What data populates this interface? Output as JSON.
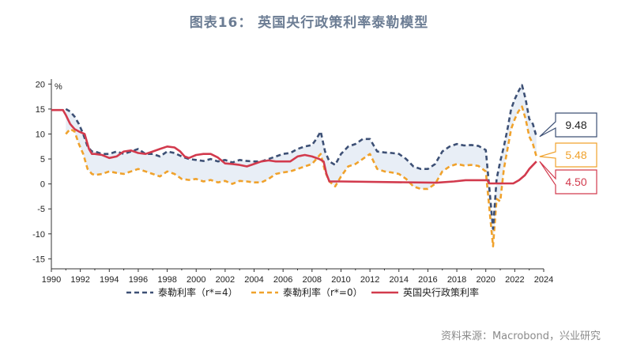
{
  "title": "图表16： 英国央行政策利率泰勒模型",
  "source": "资料来源：Macrobond，兴业研究",
  "colors": {
    "taylor_r4": "#3d5075",
    "taylor_r0": "#f0a22c",
    "policy": "#d23a4d",
    "band": "#e8eef6",
    "title": "#6c7d94"
  },
  "chart_data": {
    "type": "line",
    "title": "",
    "ylabel": "%",
    "xlim": [
      1990,
      2024
    ],
    "ylim": [
      -17,
      21
    ],
    "xticks": [
      "1990",
      "1992",
      "1994",
      "1996",
      "1998",
      "2000",
      "2002",
      "2004",
      "2006",
      "2008",
      "2010",
      "2012",
      "2014",
      "2016",
      "2018",
      "2020",
      "2022",
      "2024"
    ],
    "yticks": [
      "20",
      "15",
      "10",
      "5",
      "0",
      "-5",
      "-10",
      "-15"
    ],
    "legend_position": "bottom",
    "series": [
      {
        "name": "泰勒利率（r*=4）",
        "style": "dashed",
        "color_key": "taylor_r4",
        "x": [
          1991.0,
          1991.3,
          1991.6,
          1991.9,
          1992.2,
          1992.5,
          1992.8,
          1993.0,
          1993.5,
          1994.0,
          1994.5,
          1995.0,
          1995.5,
          1996.0,
          1996.5,
          1997.0,
          1997.5,
          1998.0,
          1998.5,
          1999.0,
          1999.5,
          2000.0,
          2000.5,
          2001.0,
          2001.5,
          2002.0,
          2002.5,
          2003.0,
          2003.5,
          2004.0,
          2004.5,
          2005.0,
          2005.5,
          2006.0,
          2006.5,
          2007.0,
          2007.5,
          2008.0,
          2008.3,
          2008.6,
          2008.9,
          2009.2,
          2009.6,
          2010.0,
          2010.5,
          2011.0,
          2011.5,
          2012.0,
          2012.5,
          2013.0,
          2013.5,
          2014.0,
          2014.5,
          2015.0,
          2015.5,
          2016.0,
          2016.5,
          2017.0,
          2017.5,
          2018.0,
          2018.5,
          2019.0,
          2019.5,
          2020.0,
          2020.25,
          2020.5,
          2020.75,
          2021.0,
          2021.25,
          2021.5,
          2021.75,
          2022.0,
          2022.25,
          2022.5,
          2022.75,
          2023.0,
          2023.25,
          2023.5
        ],
        "values": [
          15,
          14.5,
          13.5,
          12,
          10,
          7.5,
          6.5,
          6.5,
          6,
          6,
          6.5,
          6,
          6.5,
          7,
          6,
          6,
          5.5,
          6.5,
          6.2,
          5.5,
          5,
          4.8,
          4.6,
          5,
          4.5,
          4.8,
          4.3,
          4.8,
          4.6,
          4.5,
          4.5,
          5,
          5.5,
          6,
          6.2,
          7,
          7.5,
          7.8,
          9,
          10.5,
          6.5,
          4.5,
          3.8,
          6,
          7.5,
          8,
          9,
          9,
          6.5,
          6.3,
          6.2,
          6,
          5,
          3.5,
          3,
          3,
          4,
          6.5,
          7.5,
          8,
          7.7,
          7.8,
          7.6,
          6.8,
          -1,
          -9,
          1,
          4.5,
          7.5,
          11,
          15,
          17,
          18.5,
          19.8,
          17,
          13,
          12,
          9.48
        ]
      },
      {
        "name": "泰勒利率（r*=0）",
        "style": "dashed",
        "color_key": "taylor_r0",
        "x": [
          1991.0,
          1991.3,
          1991.6,
          1991.9,
          1992.2,
          1992.5,
          1992.8,
          1993.0,
          1993.5,
          1994.0,
          1994.5,
          1995.0,
          1995.5,
          1996.0,
          1996.5,
          1997.0,
          1997.5,
          1998.0,
          1998.5,
          1999.0,
          1999.5,
          2000.0,
          2000.5,
          2001.0,
          2001.5,
          2002.0,
          2002.5,
          2003.0,
          2003.5,
          2004.0,
          2004.5,
          2005.0,
          2005.5,
          2006.0,
          2006.5,
          2007.0,
          2007.5,
          2008.0,
          2008.3,
          2008.6,
          2008.9,
          2009.2,
          2009.6,
          2010.0,
          2010.5,
          2011.0,
          2011.5,
          2012.0,
          2012.5,
          2013.0,
          2013.5,
          2014.0,
          2014.5,
          2015.0,
          2015.5,
          2016.0,
          2016.5,
          2017.0,
          2017.5,
          2018.0,
          2018.5,
          2019.0,
          2019.5,
          2020.0,
          2020.25,
          2020.5,
          2020.75,
          2021.0,
          2021.25,
          2021.5,
          2021.75,
          2022.0,
          2022.25,
          2022.5,
          2022.75,
          2023.0,
          2023.25,
          2023.5
        ],
        "values": [
          10,
          11,
          10.5,
          8,
          6,
          3,
          2,
          1.8,
          2,
          2.5,
          2.2,
          2,
          2.5,
          3,
          2.5,
          2,
          1.5,
          2.5,
          2,
          1,
          0.8,
          1,
          0.5,
          0.8,
          0.3,
          0.6,
          0,
          0.6,
          0.5,
          0.3,
          0.3,
          1,
          2,
          2.3,
          2.5,
          3,
          3.5,
          4,
          5,
          6,
          2.5,
          0.5,
          -0.5,
          1.5,
          3.5,
          4,
          5,
          6,
          3,
          2.5,
          2.3,
          2,
          1,
          -0.5,
          -1,
          -1,
          0,
          2.5,
          3.5,
          4,
          3.7,
          3.8,
          3.6,
          2.5,
          -5,
          -12.5,
          -3,
          -3.5,
          3,
          7,
          11,
          13,
          14.5,
          15.5,
          13,
          9.5,
          8,
          5.48
        ]
      },
      {
        "name": "英国央行政策利率",
        "style": "solid",
        "color_key": "policy",
        "x": [
          1990.0,
          1990.8,
          1991.0,
          1991.3,
          1991.6,
          1991.9,
          1992.3,
          1992.6,
          1992.8,
          1993.0,
          1993.5,
          1994.0,
          1994.5,
          1995.0,
          1995.5,
          1996.0,
          1996.5,
          1997.0,
          1997.5,
          1998.0,
          1998.5,
          1998.9,
          1999.2,
          1999.5,
          2000.0,
          2000.5,
          2001.0,
          2001.5,
          2002.0,
          2002.5,
          2003.0,
          2003.5,
          2004.0,
          2004.5,
          2005.0,
          2005.5,
          2006.0,
          2006.5,
          2007.0,
          2007.5,
          2008.0,
          2008.5,
          2008.8,
          2009.0,
          2009.2,
          2010.0,
          2016.6,
          2017.8,
          2018.6,
          2020.1,
          2020.25,
          2021.9,
          2022.3,
          2022.7,
          2023.0,
          2023.5
        ],
        "values": [
          14.8,
          14.8,
          13.8,
          12,
          11,
          10.5,
          10,
          7,
          6,
          6,
          5.8,
          5.2,
          5.5,
          6.5,
          6.7,
          6.2,
          6,
          6.5,
          7,
          7.5,
          7.3,
          6.5,
          5.5,
          5.2,
          5.8,
          6,
          6,
          5.3,
          4.1,
          4,
          3.8,
          3.5,
          4,
          4.5,
          4.7,
          4.5,
          4.5,
          4.5,
          5.5,
          5.8,
          5.5,
          5,
          4.5,
          2,
          0.5,
          0.5,
          0.25,
          0.5,
          0.75,
          0.75,
          0.1,
          0.1,
          0.75,
          1.75,
          3,
          4.5
        ]
      }
    ],
    "callouts": [
      {
        "label": "9.48",
        "color_key": "taylor_r4",
        "value": 9.48
      },
      {
        "label": "5.48",
        "color_key": "taylor_r0",
        "value": 5.48
      },
      {
        "label": "4.50",
        "color_key": "policy",
        "value": 4.5
      }
    ]
  }
}
